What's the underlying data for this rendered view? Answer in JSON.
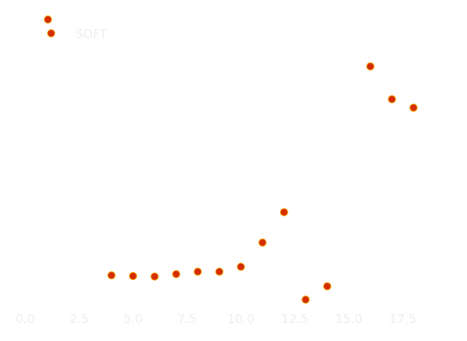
{
  "chart_data": {
    "type": "scatter",
    "title": "",
    "xlabel": "",
    "ylabel": "",
    "xlim": [
      0,
      19.5
    ],
    "x_ticks": [
      0.0,
      2.5,
      5.0,
      7.5,
      10.0,
      12.5,
      15.0,
      17.5
    ],
    "x_tick_labels": [
      "0.0",
      "2.5",
      "5.0",
      "7.5",
      "10.0",
      "12.5",
      "15.0",
      "17.5"
    ],
    "ylim": [
      -0.3,
      12.0
    ],
    "grid": false,
    "legend_position": "top-left",
    "series": [
      {
        "name": "SOFT",
        "color": "#d62d00",
        "edge_color": "#f0a000",
        "x": [
          4,
          5,
          6,
          7,
          8,
          9,
          10,
          11,
          12,
          13,
          14,
          16,
          17,
          18
        ],
        "y": [
          1.0,
          0.97,
          0.95,
          1.05,
          1.15,
          1.15,
          1.35,
          2.35,
          3.6,
          0.0,
          0.55,
          9.6,
          8.25,
          7.9
        ]
      }
    ]
  }
}
